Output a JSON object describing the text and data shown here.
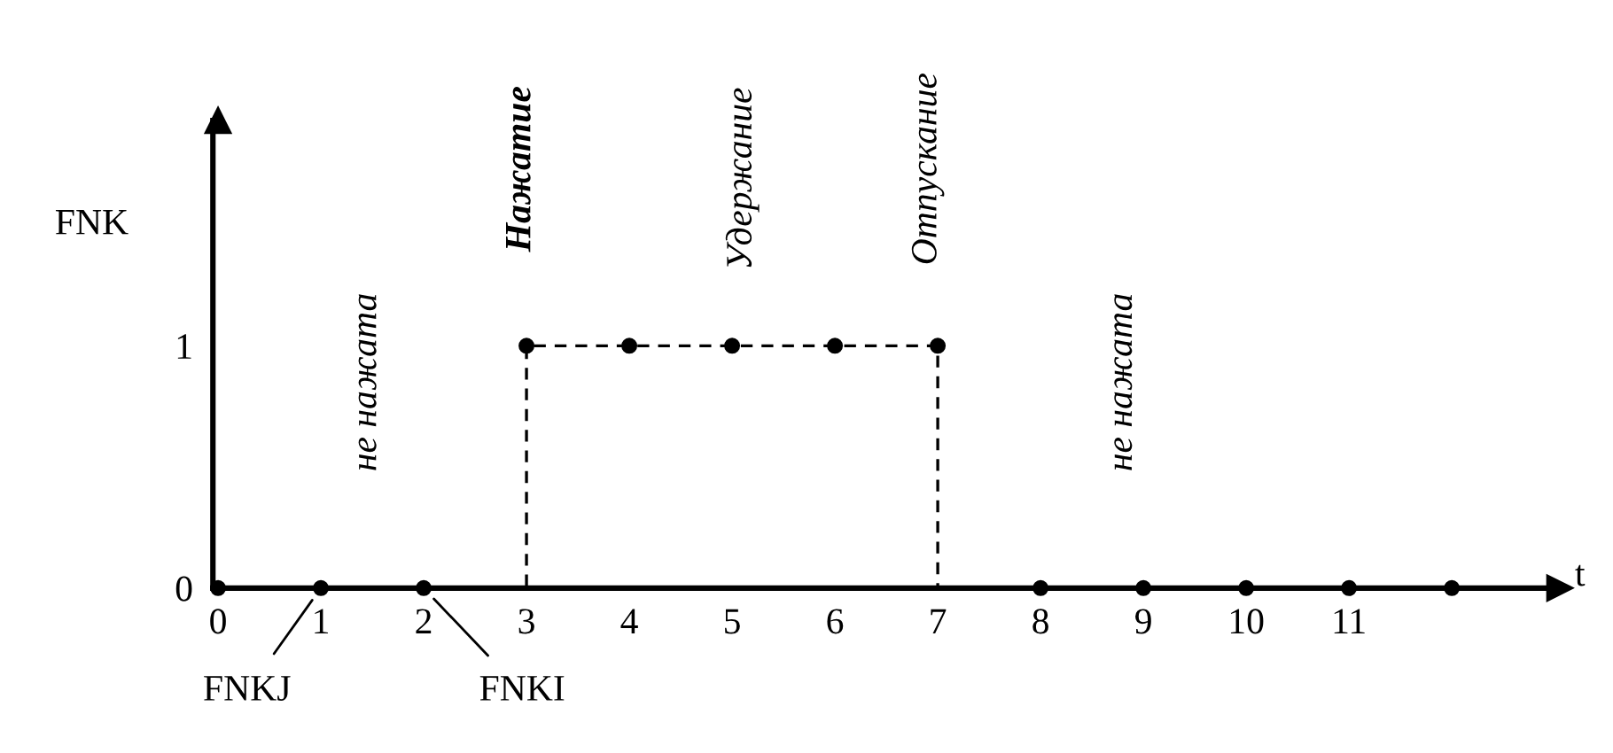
{
  "chart_data": {
    "type": "line",
    "xlabel": "t",
    "ylabel": "FNK",
    "xlim": [
      -0.05,
      13.05
    ],
    "ylim": [
      0,
      1.93
    ],
    "xticks": [
      0,
      1,
      2,
      3,
      4,
      5,
      6,
      7,
      8,
      9,
      10,
      11
    ],
    "yticks": [
      0,
      1
    ],
    "grid": false,
    "legend": false,
    "series": [
      {
        "x": [
          0,
          3,
          3,
          7,
          7,
          9
        ],
        "values": [
          0,
          0,
          1,
          1,
          0,
          0
        ],
        "color": "#000000",
        "line_style": "dashed",
        "marker": "none"
      },
      {
        "type": "scatter",
        "x": [
          0,
          1,
          2,
          3,
          4,
          5,
          6,
          7,
          8,
          9,
          10,
          11,
          12
        ],
        "values": [
          0,
          0,
          0,
          1,
          1,
          1,
          1,
          1,
          0,
          0,
          0,
          0,
          0
        ],
        "color": "#000000",
        "marker": "circle"
      }
    ],
    "annotations": [
      "не нажата",
      "Нажатие",
      "Удержание",
      "Отпускание",
      "не нажата",
      {
        "text": "FNKJ",
        "x": 1,
        "y": 0
      },
      {
        "text": "FNKI",
        "x": 2,
        "y": 0
      }
    ]
  }
}
